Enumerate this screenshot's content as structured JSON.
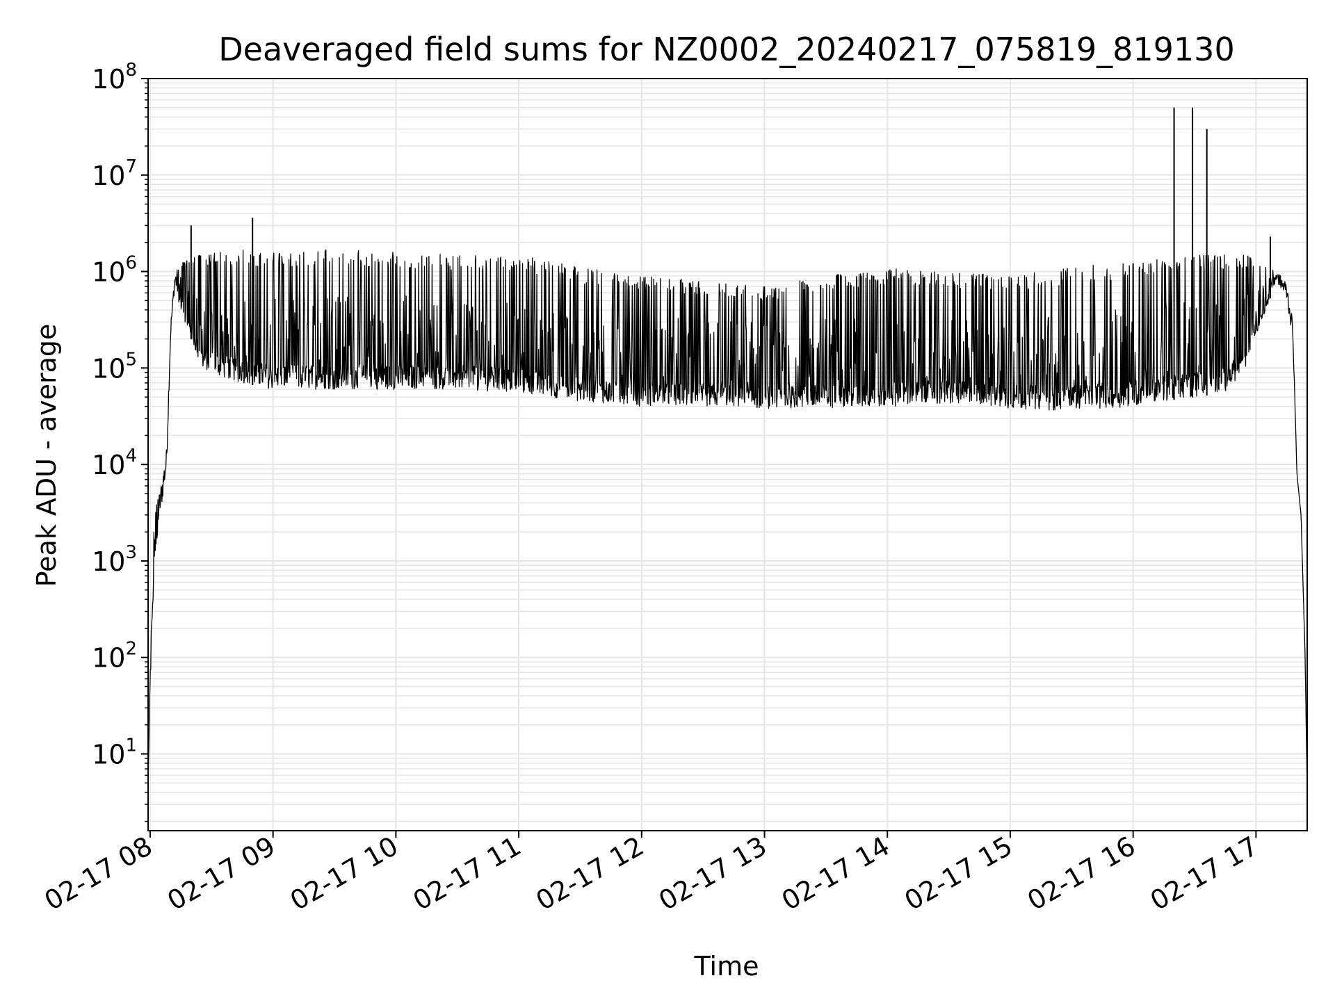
{
  "chart_data": {
    "type": "line",
    "title": "Deaveraged field sums for NZ0002_20240217_075819_819130",
    "xlabel": "Time",
    "ylabel": "Peak ADU - average",
    "y_scale": "log",
    "ylim": [
      1.6,
      100000000
    ],
    "xlim": [
      "2024-02-17T07:59",
      "2024-02-17T17:25"
    ],
    "grid": true,
    "line_color": "#000000",
    "grid_color": "#e5e5e5",
    "x_ticks": [
      {
        "value": "2024-02-17T08:00",
        "label": "02-17 08"
      },
      {
        "value": "2024-02-17T09:00",
        "label": "02-17 09"
      },
      {
        "value": "2024-02-17T10:00",
        "label": "02-17 10"
      },
      {
        "value": "2024-02-17T11:00",
        "label": "02-17 11"
      },
      {
        "value": "2024-02-17T12:00",
        "label": "02-17 12"
      },
      {
        "value": "2024-02-17T13:00",
        "label": "02-17 13"
      },
      {
        "value": "2024-02-17T14:00",
        "label": "02-17 14"
      },
      {
        "value": "2024-02-17T15:00",
        "label": "02-17 15"
      },
      {
        "value": "2024-02-17T16:00",
        "label": "02-17 16"
      },
      {
        "value": "2024-02-17T17:00",
        "label": "02-17 17"
      }
    ],
    "y_ticks": [
      {
        "value": 10,
        "base": "10",
        "exp": "1"
      },
      {
        "value": 100,
        "base": "10",
        "exp": "2"
      },
      {
        "value": 1000,
        "base": "10",
        "exp": "3"
      },
      {
        "value": 10000,
        "base": "10",
        "exp": "4"
      },
      {
        "value": 100000,
        "base": "10",
        "exp": "5"
      },
      {
        "value": 1000000,
        "base": "10",
        "exp": "6"
      },
      {
        "value": 10000000,
        "base": "10",
        "exp": "7"
      },
      {
        "value": 100000000,
        "base": "10",
        "exp": "8"
      }
    ],
    "series_envelope": {
      "x": [
        "2024-02-17T07:59",
        "2024-02-17T08:00",
        "2024-02-17T08:02",
        "2024-02-17T08:05",
        "2024-02-17T08:08",
        "2024-02-17T08:10",
        "2024-02-17T08:12",
        "2024-02-17T08:15",
        "2024-02-17T08:20",
        "2024-02-17T08:25",
        "2024-02-17T08:35",
        "2024-02-17T08:45",
        "2024-02-17T09:00",
        "2024-02-17T09:30",
        "2024-02-17T10:00",
        "2024-02-17T10:30",
        "2024-02-17T11:00",
        "2024-02-17T11:30",
        "2024-02-17T12:00",
        "2024-02-17T12:30",
        "2024-02-17T13:00",
        "2024-02-17T13:30",
        "2024-02-17T14:00",
        "2024-02-17T14:30",
        "2024-02-17T15:00",
        "2024-02-17T15:30",
        "2024-02-17T16:00",
        "2024-02-17T16:15",
        "2024-02-17T16:30",
        "2024-02-17T16:45",
        "2024-02-17T16:55",
        "2024-02-17T17:05",
        "2024-02-17T17:10",
        "2024-02-17T17:15",
        "2024-02-17T17:18",
        "2024-02-17T17:20",
        "2024-02-17T17:22",
        "2024-02-17T17:24",
        "2024-02-17T17:25"
      ],
      "low": [
        5,
        40,
        1000,
        3000,
        8000,
        200000,
        700000,
        400000,
        200000,
        100000,
        80000,
        70000,
        60000,
        60000,
        60000,
        60000,
        55000,
        45000,
        40000,
        40000,
        38000,
        38000,
        40000,
        42000,
        38000,
        36000,
        40000,
        45000,
        50000,
        55000,
        100000,
        400000,
        800000,
        500000,
        200000,
        8000,
        3000,
        100,
        4
      ],
      "high": [
        5,
        80,
        3000,
        6000,
        15000,
        300000,
        1000000,
        1200000,
        1500000,
        1600000,
        1700000,
        1700000,
        1600000,
        1700000,
        1600000,
        1500000,
        1500000,
        1100000,
        900000,
        800000,
        700000,
        900000,
        1100000,
        1000000,
        900000,
        1100000,
        1300000,
        1400000,
        1500000,
        1500000,
        1500000,
        1100000,
        1000000,
        800000,
        300000,
        8000,
        3000,
        100,
        4
      ]
    },
    "spikes": [
      {
        "x": "2024-02-17T08:20",
        "y": 3000000
      },
      {
        "x": "2024-02-17T08:50",
        "y": 3600000
      },
      {
        "x": "2024-02-17T16:20",
        "y": 50000000
      },
      {
        "x": "2024-02-17T16:29",
        "y": 50000000
      },
      {
        "x": "2024-02-17T16:36",
        "y": 30000000
      },
      {
        "x": "2024-02-17T17:07",
        "y": 2300000
      }
    ]
  }
}
